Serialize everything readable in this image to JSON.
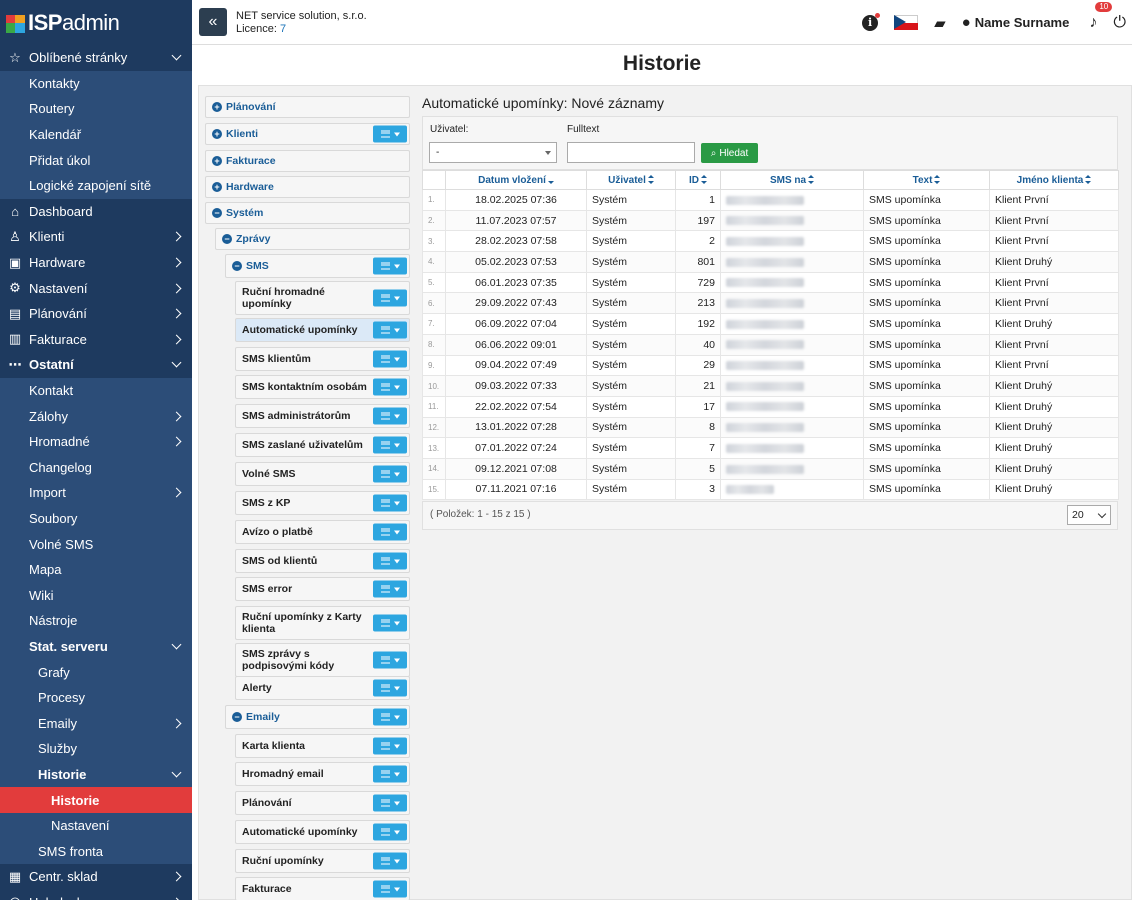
{
  "logo": {
    "isp": "ISP",
    "admin": "admin"
  },
  "header": {
    "company": "NET service solution, s.r.o.",
    "licence_label": "Licence:",
    "licence_number": "7",
    "user_name": "Name Surname",
    "notifications_count": "10"
  },
  "sidebar": {
    "items": [
      {
        "label": "Oblíbené stránky",
        "icon": "star-icon",
        "glyph": "☆",
        "level": "top",
        "chev": "down"
      },
      {
        "label": "Kontakty",
        "level": "sub"
      },
      {
        "label": "Routery",
        "level": "sub"
      },
      {
        "label": "Kalendář",
        "level": "sub"
      },
      {
        "label": "Přidat úkol",
        "level": "sub"
      },
      {
        "label": "Logické zapojení sítě",
        "level": "sub"
      },
      {
        "label": "Dashboard",
        "icon": "home-icon",
        "glyph": "⌂",
        "level": "top"
      },
      {
        "label": "Klienti",
        "icon": "user-icon",
        "glyph": "♙",
        "level": "top",
        "chev": "right"
      },
      {
        "label": "Hardware",
        "icon": "hardware-icon",
        "glyph": "▣",
        "level": "top",
        "chev": "right"
      },
      {
        "label": "Nastavení",
        "icon": "gear-icon",
        "glyph": "⚙",
        "level": "top",
        "chev": "right"
      },
      {
        "label": "Plánování",
        "icon": "clipboard-icon",
        "glyph": "▤",
        "level": "top",
        "chev": "right"
      },
      {
        "label": "Fakturace",
        "icon": "invoice-icon",
        "glyph": "▥",
        "level": "top",
        "chev": "right"
      },
      {
        "label": "Ostatní",
        "icon": "more-icon",
        "glyph": "⋯",
        "level": "top",
        "chev": "down",
        "bold": true
      },
      {
        "label": "Kontakt",
        "level": "sub"
      },
      {
        "label": "Zálohy",
        "level": "sub",
        "chev": "right"
      },
      {
        "label": "Hromadné",
        "level": "sub",
        "chev": "right"
      },
      {
        "label": "Changelog",
        "level": "sub"
      },
      {
        "label": "Import",
        "level": "sub",
        "chev": "right"
      },
      {
        "label": "Soubory",
        "level": "sub"
      },
      {
        "label": "Volné SMS",
        "level": "sub"
      },
      {
        "label": "Mapa",
        "level": "sub"
      },
      {
        "label": "Wiki",
        "level": "sub"
      },
      {
        "label": "Nástroje",
        "level": "sub"
      },
      {
        "label": "Stat. serveru",
        "level": "sub",
        "chev": "down",
        "bold": true
      },
      {
        "label": "Grafy",
        "level": "sub2"
      },
      {
        "label": "Procesy",
        "level": "sub2"
      },
      {
        "label": "Emaily",
        "level": "sub2",
        "chev": "right"
      },
      {
        "label": "Služby",
        "level": "sub2"
      },
      {
        "label": "Historie",
        "level": "sub2",
        "chev": "down",
        "bold": true
      },
      {
        "label": "Historie",
        "level": "sub3",
        "active": true
      },
      {
        "label": "Nastavení",
        "level": "sub3"
      },
      {
        "label": "SMS fronta",
        "level": "sub2"
      },
      {
        "label": "Centr. sklad",
        "icon": "warehouse-icon",
        "glyph": "▦",
        "level": "top",
        "chev": "right"
      },
      {
        "label": "Helpdesk",
        "icon": "helpdesk-icon",
        "glyph": "◎",
        "level": "top",
        "chev": "right"
      }
    ]
  },
  "page_title": "Historie",
  "tree": [
    {
      "label": "Plánování",
      "pm": "+",
      "blue": true,
      "menu": false
    },
    {
      "label": "Klienti",
      "pm": "+",
      "blue": true,
      "menu": true
    },
    {
      "label": "Fakturace",
      "pm": "+",
      "blue": true,
      "menu": false
    },
    {
      "label": "Hardware",
      "pm": "+",
      "blue": true,
      "menu": false
    },
    {
      "label": "Systém",
      "pm": "−",
      "blue": true,
      "menu": false
    },
    {
      "label": "Zprávy",
      "pm": "−",
      "blue": true,
      "menu": false
    },
    {
      "label": "SMS",
      "pm": "−",
      "blue": true,
      "menu": true
    },
    {
      "label": "Ruční hromadné upomínky",
      "menu": true
    },
    {
      "label": "Automatické upomínky",
      "menu": true,
      "highlight": true
    },
    {
      "label": "SMS klientům",
      "menu": true
    },
    {
      "label": "SMS kontaktním osobám",
      "menu": true
    },
    {
      "label": "SMS administrátorům",
      "menu": true
    },
    {
      "label": "SMS zaslané uživatelům",
      "menu": true
    },
    {
      "label": "Volné SMS",
      "menu": true
    },
    {
      "label": "SMS z KP",
      "menu": true
    },
    {
      "label": "Avízo o platbě",
      "menu": true
    },
    {
      "label": "SMS od klientů",
      "menu": true
    },
    {
      "label": "SMS error",
      "menu": true
    },
    {
      "label": "Ruční upomínky z Karty klienta",
      "menu": true
    },
    {
      "label": "SMS zprávy s podpisovými kódy",
      "menu": true
    },
    {
      "label": "Alerty",
      "menu": true
    },
    {
      "label": "Emaily",
      "pm": "−",
      "blue": true,
      "menu": true
    },
    {
      "label": "Karta klienta",
      "menu": true
    },
    {
      "label": "Hromadný email",
      "menu": true
    },
    {
      "label": "Plánování",
      "menu": true
    },
    {
      "label": "Automatické upomínky",
      "menu": true
    },
    {
      "label": "Ruční upomínky",
      "menu": true
    },
    {
      "label": "Fakturace",
      "menu": true
    }
  ],
  "panel": {
    "title": "Automatické upomínky: Nové záznamy",
    "user_label": "Uživatel:",
    "user_value": "-",
    "fulltext_label": "Fulltext",
    "fulltext_value": "",
    "search_button": "Hledat",
    "items_info": "( Položek: 1 - 15 z 15 )",
    "page_size": "20"
  },
  "table": {
    "headers": [
      "Datum vložení",
      "Uživatel",
      "ID",
      "SMS na",
      "Text",
      "Jméno klienta"
    ],
    "rows": [
      {
        "n": "1.",
        "date": "18.02.2025 07:36",
        "user": "Systém",
        "id": "1",
        "text": "SMS upomínka",
        "client": "Klient První"
      },
      {
        "n": "2.",
        "date": "11.07.2023 07:57",
        "user": "Systém",
        "id": "197",
        "text": "SMS upomínka",
        "client": "Klient První"
      },
      {
        "n": "3.",
        "date": "28.02.2023 07:58",
        "user": "Systém",
        "id": "2",
        "text": "SMS upomínka",
        "client": "Klient První"
      },
      {
        "n": "4.",
        "date": "05.02.2023 07:53",
        "user": "Systém",
        "id": "801",
        "text": "SMS upomínka",
        "client": "Klient Druhý"
      },
      {
        "n": "5.",
        "date": "06.01.2023 07:35",
        "user": "Systém",
        "id": "729",
        "text": "SMS upomínka",
        "client": "Klient První"
      },
      {
        "n": "6.",
        "date": "29.09.2022 07:43",
        "user": "Systém",
        "id": "213",
        "text": "SMS upomínka",
        "client": "Klient První"
      },
      {
        "n": "7.",
        "date": "06.09.2022 07:04",
        "user": "Systém",
        "id": "192",
        "text": "SMS upomínka",
        "client": "Klient Druhý"
      },
      {
        "n": "8.",
        "date": "06.06.2022 09:01",
        "user": "Systém",
        "id": "40",
        "text": "SMS upomínka",
        "client": "Klient První"
      },
      {
        "n": "9.",
        "date": "09.04.2022 07:49",
        "user": "Systém",
        "id": "29",
        "text": "SMS upomínka",
        "client": "Klient První"
      },
      {
        "n": "10.",
        "date": "09.03.2022 07:33",
        "user": "Systém",
        "id": "21",
        "text": "SMS upomínka",
        "client": "Klient Druhý"
      },
      {
        "n": "11.",
        "date": "22.02.2022 07:54",
        "user": "Systém",
        "id": "17",
        "text": "SMS upomínka",
        "client": "Klient Druhý"
      },
      {
        "n": "12.",
        "date": "13.01.2022 07:28",
        "user": "Systém",
        "id": "8",
        "text": "SMS upomínka",
        "client": "Klient Druhý"
      },
      {
        "n": "13.",
        "date": "07.01.2022 07:24",
        "user": "Systém",
        "id": "7",
        "text": "SMS upomínka",
        "client": "Klient Druhý"
      },
      {
        "n": "14.",
        "date": "09.12.2021 07:08",
        "user": "Systém",
        "id": "5",
        "text": "SMS upomínka",
        "client": "Klient Druhý"
      },
      {
        "n": "15.",
        "date": "07.11.2021 07:16",
        "user": "Systém",
        "id": "3",
        "text": "SMS upomínka",
        "client": "Klient Druhý"
      }
    ]
  },
  "colors": {
    "sidebar": "#1e3a5f",
    "sidebar_sub": "#2c4d78",
    "active": "#e23c3c",
    "link": "#1a5d97",
    "menu_button": "#2da6e0",
    "search_button": "#2a9a45"
  }
}
